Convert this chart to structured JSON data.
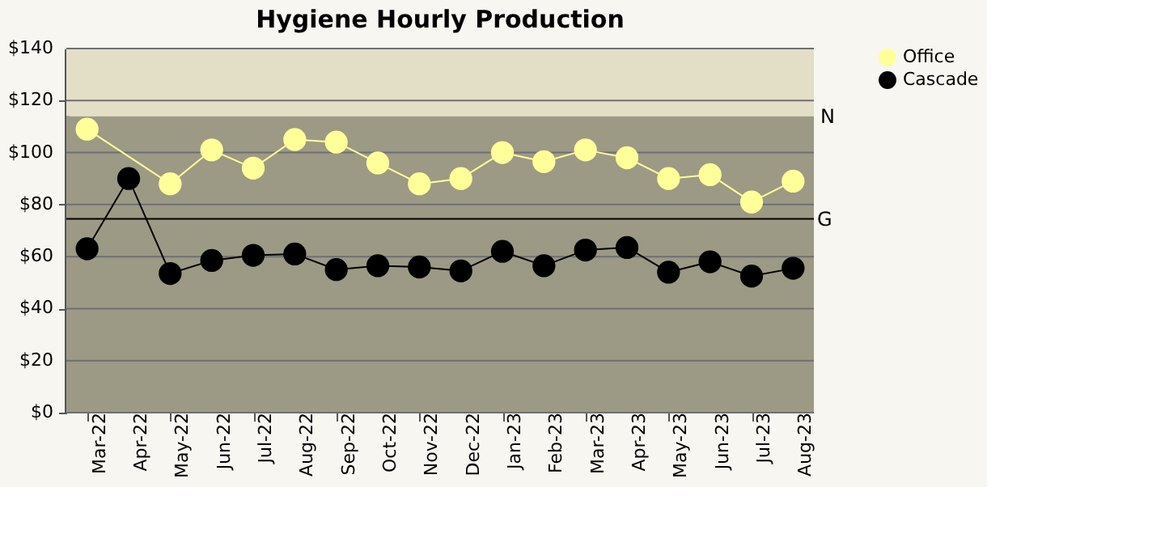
{
  "chart_data": {
    "type": "line",
    "title": "Hygiene Hourly Production",
    "categories": [
      "Mar-22",
      "Apr-22",
      "May-22",
      "Jun-22",
      "Jul-22",
      "Aug-22",
      "Sep-22",
      "Oct-22",
      "Nov-22",
      "Dec-22",
      "Jan-23",
      "Feb-23",
      "Mar-23",
      "Apr-23",
      "May-23",
      "Jun-23",
      "Jul-23",
      "Aug-23"
    ],
    "series": [
      {
        "name": "Office",
        "color": "#ffff99",
        "values": [
          109,
          null,
          88,
          101,
          94,
          105,
          104,
          96,
          88,
          90,
          100,
          96.5,
          101,
          98,
          90,
          91.5,
          81,
          89
        ]
      },
      {
        "name": "Cascade",
        "color": "#000000",
        "values": [
          63,
          90,
          53.5,
          58.5,
          60.5,
          61,
          55,
          56.5,
          56,
          54.5,
          62,
          56.5,
          62.5,
          63.5,
          54,
          58,
          52.5,
          55.5
        ]
      }
    ],
    "ylim": [
      0,
      140
    ],
    "yticks": [
      {
        "value": 0,
        "label": "$0"
      },
      {
        "value": 20,
        "label": "$20"
      },
      {
        "value": 40,
        "label": "$40"
      },
      {
        "value": 60,
        "label": "$60"
      },
      {
        "value": 80,
        "label": "$80"
      },
      {
        "value": 100,
        "label": "$100"
      },
      {
        "value": 120,
        "label": "$120"
      },
      {
        "value": 140,
        "label": "$140"
      }
    ],
    "bands": [
      {
        "axis": "y",
        "from": 0,
        "to": 114,
        "label": "N",
        "color": "#9c9a84"
      },
      {
        "axis": "y",
        "from": 114,
        "to": 140,
        "color": "#e3dfc6"
      }
    ],
    "ref_lines": [
      {
        "axis": "y",
        "value": 74.5,
        "label": "G",
        "color": "#000000"
      }
    ],
    "grid": "y",
    "legend": "right",
    "marker": "circle",
    "line_style": "solid"
  }
}
